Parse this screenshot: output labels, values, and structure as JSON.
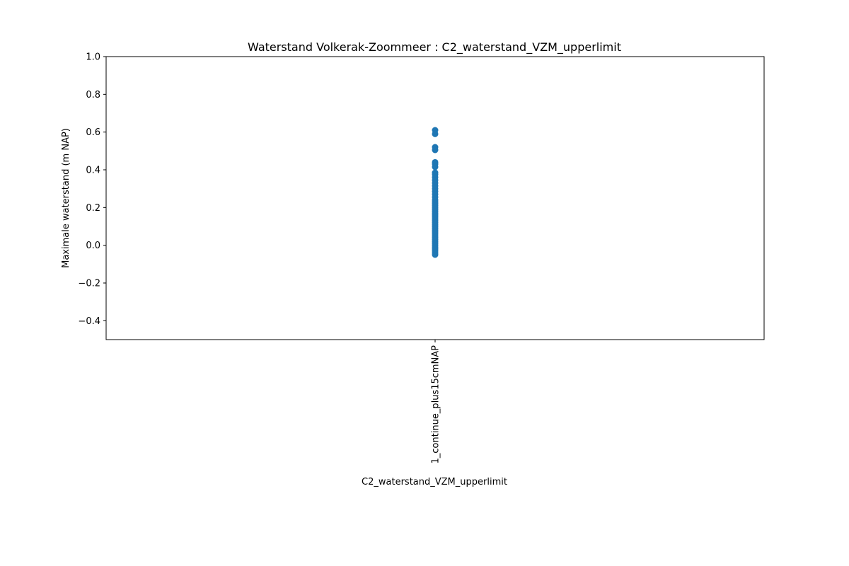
{
  "chart_data": {
    "type": "scatter",
    "title": "Waterstand Volkerak-Zoommeer : C2_waterstand_VZM_upperlimit",
    "xlabel": "C2_waterstand_VZM_upperlimit",
    "ylabel": "Maximale waterstand (m NAP)",
    "categories": [
      "1_continue_plus15cmNAP"
    ],
    "ylim": [
      -0.5,
      1.0
    ],
    "yticks": [
      -0.4,
      -0.2,
      0.0,
      0.2,
      0.4,
      0.6,
      0.8,
      1.0
    ],
    "ytick_labels": [
      "−0.4",
      "−0.2",
      "0.0",
      "0.2",
      "0.4",
      "0.6",
      "0.8",
      "1.0"
    ],
    "grid": false,
    "marker_color": "#1f77b4",
    "series": [
      {
        "category": "1_continue_plus15cmNAP",
        "values": [
          0.61,
          0.59,
          0.52,
          0.505,
          0.44,
          0.43,
          0.415,
          0.385,
          0.375,
          0.36,
          0.345,
          0.33,
          0.315,
          0.3,
          0.285,
          0.27,
          0.255,
          0.24,
          0.23,
          0.22,
          0.21,
          0.2,
          0.19,
          0.18,
          0.17,
          0.16,
          0.15,
          0.14,
          0.13,
          0.12,
          0.11,
          0.1,
          0.09,
          0.08,
          0.07,
          0.06,
          0.05,
          0.04,
          0.03,
          0.02,
          0.01,
          0.0,
          -0.01,
          -0.02,
          -0.03,
          -0.04,
          -0.05
        ]
      }
    ]
  }
}
